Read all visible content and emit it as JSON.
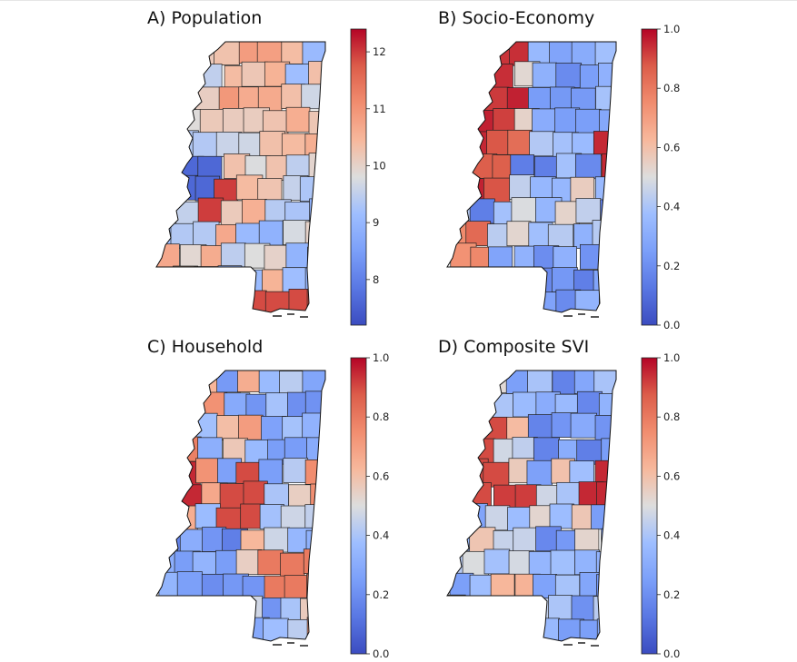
{
  "panels": [
    {
      "title": "A) Population",
      "colorbar": {
        "ticks": [
          "12",
          "11",
          "10",
          "9",
          "8"
        ],
        "min": 7.2,
        "max": 12.4
      }
    },
    {
      "title": "B) Socio-Economy",
      "colorbar": {
        "ticks": [
          "1.0",
          "0.8",
          "0.6",
          "0.4",
          "0.2",
          "0.0"
        ],
        "min": 0.0,
        "max": 1.0
      }
    },
    {
      "title": "C) Household",
      "colorbar": {
        "ticks": [
          "1.0",
          "0.8",
          "0.6",
          "0.4",
          "0.2",
          "0.0"
        ],
        "min": 0.0,
        "max": 1.0
      }
    },
    {
      "title": "D) Composite SVI",
      "colorbar": {
        "ticks": [
          "1.0",
          "0.8",
          "0.6",
          "0.4",
          "0.2",
          "0.0"
        ],
        "min": 0.0,
        "max": 1.0
      }
    }
  ],
  "colors": {
    "colormap": "coolwarm",
    "low": "#3b4cc0",
    "mid": "#dddddd",
    "high": "#b40426",
    "outline": "#222222"
  },
  "chart_data": {
    "type": "choropleth",
    "region": "Mississippi counties",
    "panels": [
      "A) Population",
      "B) Socio-Economy",
      "C) Household",
      "D) Composite SVI"
    ]
  }
}
